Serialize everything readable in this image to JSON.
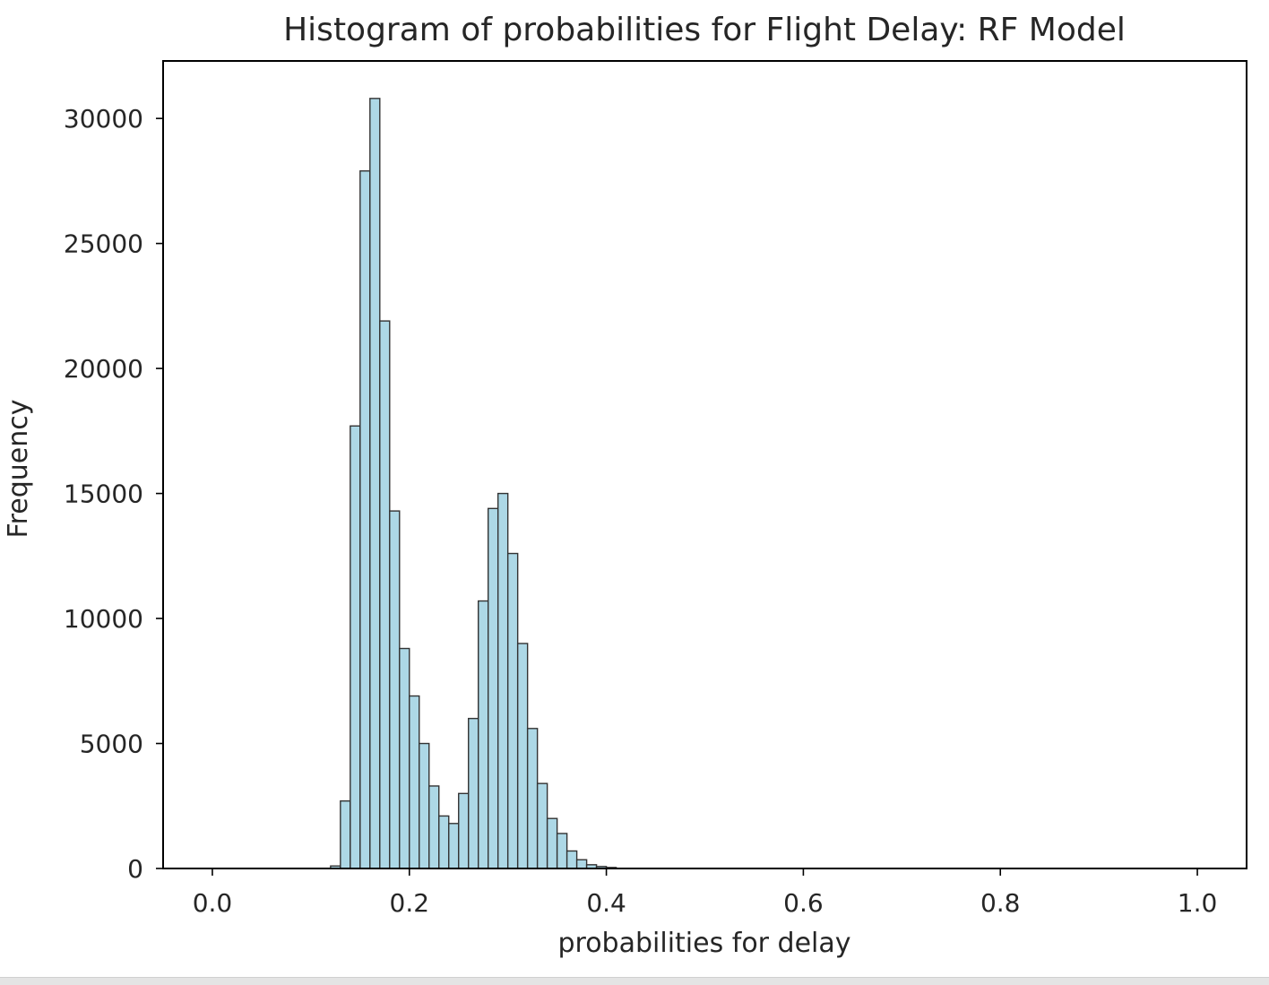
{
  "chart_data": {
    "type": "bar",
    "title": "Histogram of probabilities for Flight Delay: RF Model",
    "xlabel": "probabilities for delay",
    "ylabel": "Frequency",
    "xlim": [
      -0.05,
      1.05
    ],
    "ylim": [
      0,
      32300
    ],
    "bin_width": 0.01,
    "bin_starts": [
      0.11,
      0.12,
      0.13,
      0.14,
      0.15,
      0.16,
      0.17,
      0.18,
      0.19,
      0.2,
      0.21,
      0.22,
      0.23,
      0.24,
      0.25,
      0.26,
      0.27,
      0.28,
      0.29,
      0.3,
      0.31,
      0.32,
      0.33,
      0.34,
      0.35,
      0.36,
      0.37,
      0.38,
      0.39,
      0.4,
      0.41
    ],
    "values": [
      0,
      100,
      2700,
      17700,
      27900,
      30800,
      21900,
      14300,
      8800,
      6900,
      5000,
      3300,
      2100,
      1800,
      3000,
      6000,
      10700,
      14400,
      15000,
      12600,
      9000,
      5600,
      3400,
      2000,
      1400,
      700,
      350,
      150,
      80,
      40,
      10
    ],
    "x_ticks": [
      0.0,
      0.2,
      0.4,
      0.6,
      0.8,
      1.0
    ],
    "x_tick_labels": [
      "0.0",
      "0.2",
      "0.4",
      "0.6",
      "0.8",
      "1.0"
    ],
    "y_ticks": [
      0,
      5000,
      10000,
      15000,
      20000,
      25000,
      30000
    ],
    "y_tick_labels": [
      "0",
      "5000",
      "10000",
      "15000",
      "20000",
      "25000",
      "30000"
    ],
    "grid": false,
    "colors": {
      "bar_fill": "#add8e6",
      "bar_edge": "#333333",
      "axis": "#000000"
    }
  }
}
